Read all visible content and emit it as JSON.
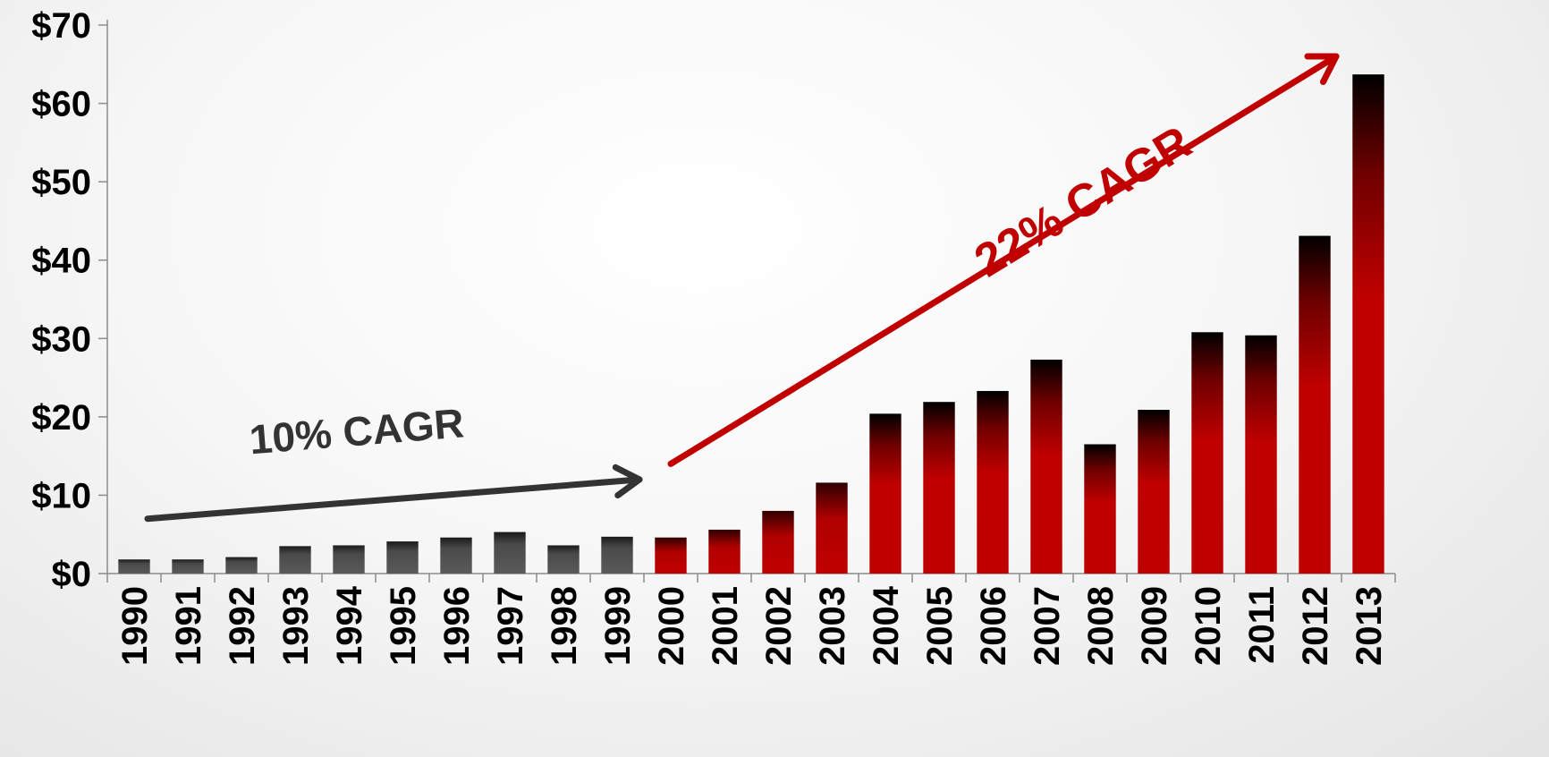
{
  "chart_data": {
    "type": "bar",
    "title": "",
    "xlabel": "",
    "ylabel": "",
    "ylim": [
      0,
      70
    ],
    "yticks": [
      0,
      10,
      20,
      30,
      40,
      50,
      60,
      70
    ],
    "ytick_labels": [
      "$0",
      "$10",
      "$20",
      "$30",
      "$40",
      "$50",
      "$60",
      "$70"
    ],
    "grid": false,
    "categories": [
      "1990",
      "1991",
      "1992",
      "1993",
      "1994",
      "1995",
      "1996",
      "1997",
      "1998",
      "1999",
      "2000",
      "2001",
      "2002",
      "2003",
      "2004",
      "2005",
      "2006",
      "2007",
      "2008",
      "2009",
      "2010",
      "2011",
      "2012",
      "2013"
    ],
    "values": [
      1.8,
      1.8,
      2.1,
      3.5,
      3.6,
      4.1,
      4.6,
      5.3,
      3.6,
      4.7,
      4.6,
      5.6,
      8.0,
      11.6,
      20.4,
      21.9,
      23.3,
      27.3,
      16.5,
      20.9,
      30.8,
      30.4,
      43.1,
      63.7
    ],
    "series_colors": {
      "1990-1999": "#555555",
      "2000-2013": "#c00000"
    },
    "annotations": [
      {
        "text": "10% CAGR",
        "color": "#333333",
        "arrow_from": [
          "1990",
          7
        ],
        "arrow_to": [
          "1999",
          12
        ]
      },
      {
        "text": "22% CAGR",
        "color": "#c00000",
        "arrow_from": [
          "2000",
          14
        ],
        "arrow_to": [
          "2013",
          66
        ]
      }
    ]
  }
}
